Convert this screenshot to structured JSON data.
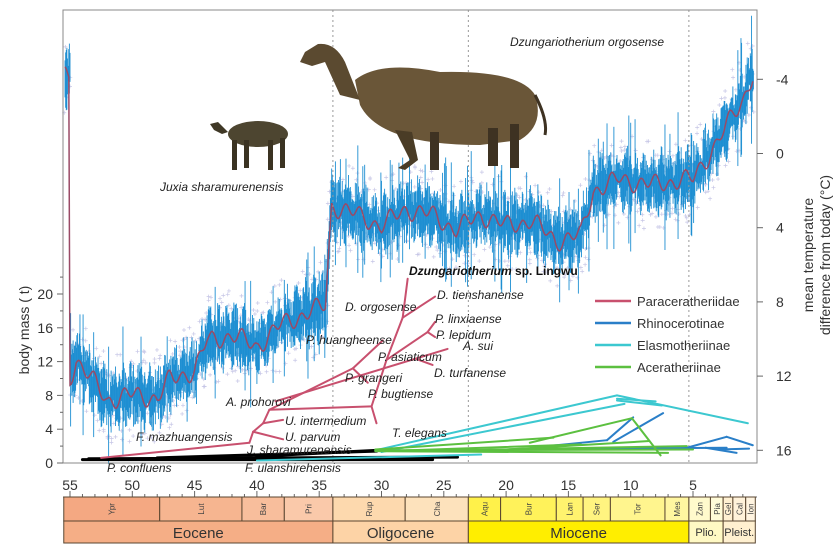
{
  "chart_data": {
    "type": "line",
    "xlabel": "",
    "ylabel": "body mass ( t)",
    "y2label": [
      "mean temperature",
      "difference from today (°C)"
    ],
    "x_axis": "age (Ma), decreasing to the right",
    "xlim": [
      55.5,
      0
    ],
    "xticks": [
      55,
      50,
      45,
      40,
      35,
      30,
      25,
      20,
      15,
      10,
      5
    ],
    "ylim": [
      0,
      22
    ],
    "yticks": [
      0,
      4,
      8,
      12,
      16,
      20
    ],
    "y2lim": [
      17,
      -5.5
    ],
    "y2ticks": [
      -4,
      0,
      4,
      8,
      12,
      16
    ],
    "y2_inverted": true,
    "grid": false,
    "boundary_lines_ma": [
      33.9,
      23.03,
      5.33
    ],
    "temperature_curve": {
      "age": [
        55,
        54.5,
        52,
        50,
        48,
        47,
        45,
        44,
        42,
        40,
        38,
        36,
        34.5,
        34,
        32,
        30,
        28,
        26,
        24,
        22,
        20,
        18,
        16,
        14,
        13,
        11,
        8,
        6,
        5,
        3,
        1,
        0.2
      ],
      "temp": [
        12.1,
        11.1,
        13.3,
        13.0,
        13.2,
        12.2,
        11.7,
        10.1,
        9.8,
        10.4,
        9.2,
        8.6,
        8.2,
        2.8,
        3.3,
        3.9,
        3.0,
        3.3,
        4.1,
        3.3,
        3.9,
        3.6,
        4.7,
        4.4,
        2.0,
        1.4,
        1.7,
        1.4,
        1.4,
        -0.7,
        -2.9,
        -4.3
      ],
      "colors": {
        "raw": "#1e8fd2",
        "scatter": "#c6c6e6",
        "smoothed": "#9a4a66"
      }
    },
    "phylogeny": [
      {
        "name": "stem",
        "color": "#000000",
        "branches": [
          [
            54,
            0.4,
            25.9,
            0.4
          ],
          [
            53.5,
            0.5,
            23.9,
            0.7
          ],
          [
            48,
            0.6,
            30.4,
            1.4
          ],
          [
            40,
            0.8,
            30.4,
            1.5
          ]
        ]
      },
      {
        "name": "Paraceratheriidae",
        "color": "#c8506e",
        "branches": [
          [
            52.5,
            0.6,
            40.6,
            2.4
          ],
          [
            40.6,
            2.4,
            40.3,
            3.7
          ],
          [
            40.3,
            3.7,
            37.9,
            2.8
          ],
          [
            40.3,
            3.7,
            39.5,
            4.7
          ],
          [
            39.5,
            4.7,
            37.9,
            5.1
          ],
          [
            39.5,
            4.7,
            39,
            6.3
          ],
          [
            39,
            6.3,
            30.8,
            6.7
          ],
          [
            30.8,
            6.7,
            30.4,
            4.7
          ],
          [
            30.8,
            6.7,
            29.6,
            12.2
          ],
          [
            39,
            6.3,
            32.3,
            11.2
          ],
          [
            32.3,
            11.2,
            29.9,
            14.5
          ],
          [
            32.3,
            11.2,
            31.1,
            9.5
          ],
          [
            38.5,
            7.3,
            24.7,
            13.5
          ],
          [
            27.2,
            12.3,
            25.9,
            11.6
          ],
          [
            29.6,
            12.2,
            26.3,
            15.5
          ],
          [
            26.3,
            15.5,
            25.7,
            16.7
          ],
          [
            26.3,
            15.5,
            25.7,
            14.9
          ],
          [
            29.6,
            12.2,
            28.3,
            17.2
          ],
          [
            28.3,
            17.2,
            27.9,
            21.8
          ],
          [
            28.3,
            17.2,
            25.7,
            19.7
          ]
        ]
      },
      {
        "name": "Rhinocerotinae",
        "color": "#2a7fc8",
        "branches": [
          [
            18,
            1.8,
            11.9,
            2.7
          ],
          [
            11.9,
            2.7,
            9.8,
            5.4
          ],
          [
            11.4,
            2.5,
            7.4,
            5.9
          ],
          [
            14,
            1.7,
            2.3,
            1.8
          ],
          [
            6,
            1.6,
            2.3,
            3.1
          ],
          [
            2.3,
            3.1,
            0.2,
            2.1
          ],
          [
            4,
            1.8,
            1.5,
            1.2
          ],
          [
            3,
            1.6,
            0.5,
            1.7
          ]
        ]
      },
      {
        "name": "Elasmotheriinae",
        "color": "#3cc8d0",
        "branches": [
          [
            30.5,
            1.5,
            11.1,
            8.0
          ],
          [
            11.1,
            8.0,
            0.6,
            4.7
          ],
          [
            11.1,
            7.6,
            8,
            7.3
          ],
          [
            11.1,
            7.4,
            7.5,
            6.8
          ],
          [
            40,
            0.3,
            22,
            1.0
          ],
          [
            30,
            1.3,
            10.5,
            7.0
          ]
        ]
      },
      {
        "name": "Aceratheriinae",
        "color": "#5cc040",
        "branches": [
          [
            30.5,
            1.5,
            5,
            1.6
          ],
          [
            30.5,
            1.4,
            7,
            1.2
          ],
          [
            30.5,
            1.6,
            16.2,
            3.0
          ],
          [
            18.1,
            2.4,
            9.9,
            5.3
          ],
          [
            9.9,
            5.3,
            7.6,
            0.9
          ],
          [
            25,
            1.5,
            5.5,
            2.0
          ],
          [
            20,
            1.6,
            8.5,
            2.6
          ],
          [
            28,
            1.5,
            14,
            2.2
          ]
        ]
      }
    ],
    "taxa": [
      "Dzungariotherium",
      "sp.  Lingwu",
      "D. tienshanense",
      "D.  orgosense",
      "P.  linxiaense",
      "P.  lepidum",
      "P.  huangheense",
      "A. sui",
      "P.  asiaticum",
      "D. turfanense",
      "P. grangeri",
      "P. bugtiense",
      "A.  prohorovi",
      "U.  intermedium",
      "T. elegans",
      "F.  mazhuangensis",
      "U.  parvum",
      "J.  sharamurenensis",
      "P.  confluens",
      "F.  ulanshirehensis"
    ],
    "legend": {
      "placement": "right",
      "items": [
        {
          "label": "Paraceratheriidae",
          "color": "#c8506e"
        },
        {
          "label": "Rhinocerotinae",
          "color": "#2a7fc8"
        },
        {
          "label": "Elasmotheriinae",
          "color": "#3cc8d0"
        },
        {
          "label": "Aceratheriinae",
          "color": "#5cc040"
        }
      ]
    },
    "timescale": {
      "stages": [
        {
          "name": "Ypr",
          "start": 55.5,
          "end": 47.8,
          "color": "#f4a882"
        },
        {
          "name": "Lut",
          "start": 47.8,
          "end": 41.2,
          "color": "#f6b590"
        },
        {
          "name": "Bar",
          "start": 41.2,
          "end": 37.8,
          "color": "#f8be9c"
        },
        {
          "name": "Pri",
          "start": 37.8,
          "end": 33.9,
          "color": "#fac9aa"
        },
        {
          "name": "Rup",
          "start": 33.9,
          "end": 28.1,
          "color": "#fdd9ae"
        },
        {
          "name": "Cha",
          "start": 28.1,
          "end": 23.03,
          "color": "#fde2bc"
        },
        {
          "name": "Aqu",
          "start": 23.03,
          "end": 20.44,
          "color": "#fff14a"
        },
        {
          "name": "Bur",
          "start": 20.44,
          "end": 15.97,
          "color": "#fff25a"
        },
        {
          "name": "Lan",
          "start": 15.97,
          "end": 13.82,
          "color": "#fff36e"
        },
        {
          "name": "Ser",
          "start": 13.82,
          "end": 11.63,
          "color": "#fff480"
        },
        {
          "name": "Tor",
          "start": 11.63,
          "end": 7.25,
          "color": "#fff58e"
        },
        {
          "name": "Mes",
          "start": 7.25,
          "end": 5.33,
          "color": "#fff6a0"
        },
        {
          "name": "Zan",
          "start": 5.33,
          "end": 3.6,
          "color": "#fffacc"
        },
        {
          "name": "Pia",
          "start": 3.6,
          "end": 2.58,
          "color": "#fffbd8"
        },
        {
          "name": "Gel",
          "start": 2.58,
          "end": 1.8,
          "color": "#fff0d2"
        },
        {
          "name": "Cal",
          "start": 1.8,
          "end": 0.77,
          "color": "#fff2da"
        },
        {
          "name": "Ion",
          "start": 0.77,
          "end": 0.0,
          "color": "#fff4e0"
        }
      ],
      "epochs": [
        {
          "name": "Eocene",
          "start": 55.5,
          "end": 33.9,
          "color": "#f5ae86"
        },
        {
          "name": "Oligocene",
          "start": 33.9,
          "end": 23.03,
          "color": "#fdd3a6"
        },
        {
          "name": "Miocene",
          "start": 23.03,
          "end": 5.33,
          "color": "#ffee00"
        },
        {
          "name": "Plio.",
          "start": 5.33,
          "end": 2.58,
          "color": "#fff9c4"
        },
        {
          "name": "Pleist.",
          "start": 2.58,
          "end": 0.0,
          "color": "#fff0d0"
        }
      ]
    }
  },
  "illustrations": [
    {
      "caption": "Juxia sharamurenensis"
    },
    {
      "caption": "Dzungariotherium orgosense"
    }
  ]
}
